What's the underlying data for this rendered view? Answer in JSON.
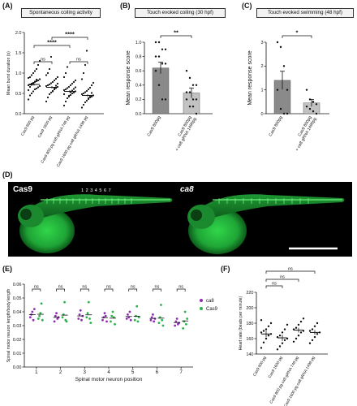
{
  "panels": {
    "A": {
      "letter": "(A)",
      "title": "Spontaneous coiling activity"
    },
    "B": {
      "letter": "(B)",
      "title": "Touch evoked coiling (30 hpf)"
    },
    "C": {
      "letter": "(C)",
      "title": "Touch evoked swimming (48 hpf)"
    },
    "D": {
      "letter": "(D)",
      "left_label": "Cas9",
      "right_label": "ca8",
      "position_labels": [
        "1",
        "2",
        "3",
        "4",
        "5",
        "6",
        "7"
      ],
      "colors": {
        "background": "#000000",
        "fluorescence": "#2ecc40"
      }
    },
    "E": {
      "letter": "(E)"
    },
    "F": {
      "letter": "(F)"
    }
  },
  "chart_data": [
    {
      "id": "A",
      "type": "scatter",
      "ylabel": "Mean burst duration (s)",
      "ylim": [
        0,
        2.0
      ],
      "yticks": [
        "0.0",
        "0.5",
        "1.0",
        "1.5",
        "2.0"
      ],
      "categories": [
        "Cas9 800 pg",
        "Cas9 1600 pg",
        "Cas9 800 pg ca8 gRNA 748 pg",
        "Cas9 1600 pg ca8 gRNA 1496 pg"
      ],
      "means": [
        0.72,
        0.65,
        0.55,
        0.45
      ],
      "sems": [
        0.03,
        0.03,
        0.03,
        0.03
      ],
      "spread": [
        [
          0.35,
          0.45,
          0.5,
          0.55,
          0.6,
          0.62,
          0.65,
          0.68,
          0.7,
          0.72,
          0.74,
          0.76,
          0.78,
          0.8,
          0.82,
          0.85,
          0.88,
          0.9,
          0.95,
          1.0,
          1.05,
          1.1,
          1.2,
          1.3,
          0.58,
          0.66,
          0.71,
          0.75,
          0.79,
          0.84
        ],
        [
          0.3,
          0.4,
          0.48,
          0.52,
          0.56,
          0.6,
          0.63,
          0.66,
          0.68,
          0.7,
          0.72,
          0.75,
          0.78,
          0.82,
          0.86,
          0.9,
          0.95,
          1.0,
          1.1,
          1.4,
          0.55,
          0.62,
          0.69,
          0.74
        ],
        [
          0.2,
          0.3,
          0.38,
          0.42,
          0.46,
          0.5,
          0.52,
          0.55,
          0.58,
          0.6,
          0.63,
          0.66,
          0.7,
          0.74,
          0.78,
          0.82,
          0.9,
          1.0,
          1.15,
          0.44,
          0.53,
          0.57,
          0.61,
          0.65,
          0.48
        ],
        [
          0.15,
          0.22,
          0.28,
          0.32,
          0.36,
          0.4,
          0.42,
          0.45,
          0.48,
          0.5,
          0.53,
          0.56,
          0.6,
          0.64,
          0.7,
          0.76,
          0.85,
          1.0,
          1.2,
          1.55,
          0.38,
          0.44,
          0.51
        ]
      ],
      "comparisons": [
        {
          "from": 0,
          "to": 1,
          "label": "ns"
        },
        {
          "from": 2,
          "to": 3,
          "label": "ns"
        },
        {
          "from": 0,
          "to": 2,
          "label": "****"
        },
        {
          "from": 1,
          "to": 3,
          "label": "****"
        }
      ]
    },
    {
      "id": "B",
      "type": "bar",
      "ylabel": "Mean response score",
      "ylim": [
        0,
        1.0
      ],
      "yticks": [
        "0.0",
        "0.2",
        "0.4",
        "0.6",
        "0.8",
        "1.0"
      ],
      "categories": [
        "Cas9 800pg",
        "Cas9 800pg + ca8 gRNA 1496pg"
      ],
      "values": [
        0.64,
        0.29
      ],
      "sems": [
        0.08,
        0.07
      ],
      "points": [
        [
          1.0,
          1.0,
          0.9,
          0.9,
          0.8,
          0.8,
          0.7,
          0.7,
          0.6,
          0.4,
          0.2,
          0.2
        ],
        [
          0.6,
          0.5,
          0.4,
          0.4,
          0.3,
          0.3,
          0.2,
          0.2,
          0.2,
          0.1,
          0.1,
          0.0
        ]
      ],
      "significance": "**"
    },
    {
      "id": "C",
      "type": "bar",
      "ylabel": "Mean response score",
      "ylim": [
        0,
        3
      ],
      "yticks": [
        "0",
        "1",
        "2",
        "3"
      ],
      "categories": [
        "Cas9 800pg",
        "Cas9 800pg + ca8 gRNA 1496pg"
      ],
      "values": [
        1.4,
        0.45
      ],
      "sems": [
        0.38,
        0.15
      ],
      "points": [
        [
          3.0,
          2.8,
          2.0,
          1.0,
          1.0,
          0.2,
          0.0,
          0.0
        ],
        [
          1.0,
          0.6,
          0.5,
          0.4,
          0.3,
          0.2,
          0.1,
          0.0
        ]
      ],
      "significance": "*"
    },
    {
      "id": "E",
      "type": "scatter",
      "ylabel": "Spinal motor neuron length/body length",
      "xlabel": "Spinal motor neuron position",
      "ylim": [
        0,
        0.06
      ],
      "yticks": [
        "0.00",
        "0.01",
        "0.02",
        "0.03",
        "0.04",
        "0.05",
        "0.06"
      ],
      "categories": [
        "1",
        "2",
        "3",
        "4",
        "5",
        "6",
        "7"
      ],
      "series": [
        {
          "name": "ca8",
          "color": "#8e2db5",
          "points": [
            [
              0.036,
              0.038,
              0.04,
              0.034,
              0.042
            ],
            [
              0.033,
              0.037,
              0.039,
              0.035,
              0.036
            ],
            [
              0.035,
              0.038,
              0.041,
              0.034,
              0.037
            ],
            [
              0.034,
              0.036,
              0.039,
              0.037,
              0.033
            ],
            [
              0.035,
              0.038,
              0.036,
              0.04,
              0.034
            ],
            [
              0.034,
              0.036,
              0.038,
              0.033,
              0.035
            ],
            [
              0.03,
              0.033,
              0.035,
              0.031,
              0.032
            ]
          ]
        },
        {
          "name": "Cas9",
          "color": "#2bb24c",
          "points": [
            [
              0.035,
              0.037,
              0.039,
              0.046,
              0.034
            ],
            [
              0.036,
              0.038,
              0.047,
              0.034,
              0.033
            ],
            [
              0.036,
              0.039,
              0.047,
              0.035,
              0.032
            ],
            [
              0.033,
              0.037,
              0.04,
              0.036,
              0.031
            ],
            [
              0.034,
              0.037,
              0.044,
              0.033,
              0.036
            ],
            [
              0.032,
              0.036,
              0.045,
              0.034,
              0.03
            ],
            [
              0.028,
              0.033,
              0.04,
              0.031,
              0.035
            ]
          ]
        }
      ],
      "comparisons": [
        "ns",
        "ns",
        "ns",
        "ns",
        "ns",
        "ns",
        "ns"
      ]
    },
    {
      "id": "F",
      "type": "scatter",
      "ylabel": "Heart rate (beats per minute)",
      "ylim": [
        140,
        220
      ],
      "yticks": [
        "140",
        "160",
        "180",
        "200",
        "220"
      ],
      "categories": [
        "Cas9 800 pg",
        "Cas9 1600 pg",
        "Cas9 800 pg ca8 gRNA 748 pg",
        "Cas9 1600 pg ca8 gRNA 1496 pg"
      ],
      "means": [
        166,
        161,
        171,
        168
      ],
      "sems": [
        4,
        4,
        3,
        3
      ],
      "spread": [
        [
          148,
          155,
          160,
          164,
          166,
          168,
          170,
          172,
          176,
          180,
          184
        ],
        [
          146,
          150,
          154,
          158,
          160,
          162,
          164,
          168,
          172,
          178
        ],
        [
          156,
          160,
          164,
          168,
          170,
          172,
          174,
          178,
          182,
          186
        ],
        [
          154,
          158,
          162,
          166,
          168,
          170,
          172,
          176,
          180
        ]
      ],
      "comparisons": [
        {
          "from": 0,
          "to": 1,
          "label": "ns"
        },
        {
          "from": 0,
          "to": 2,
          "label": "ns"
        },
        {
          "from": 0,
          "to": 3,
          "label": "ns"
        }
      ]
    }
  ]
}
